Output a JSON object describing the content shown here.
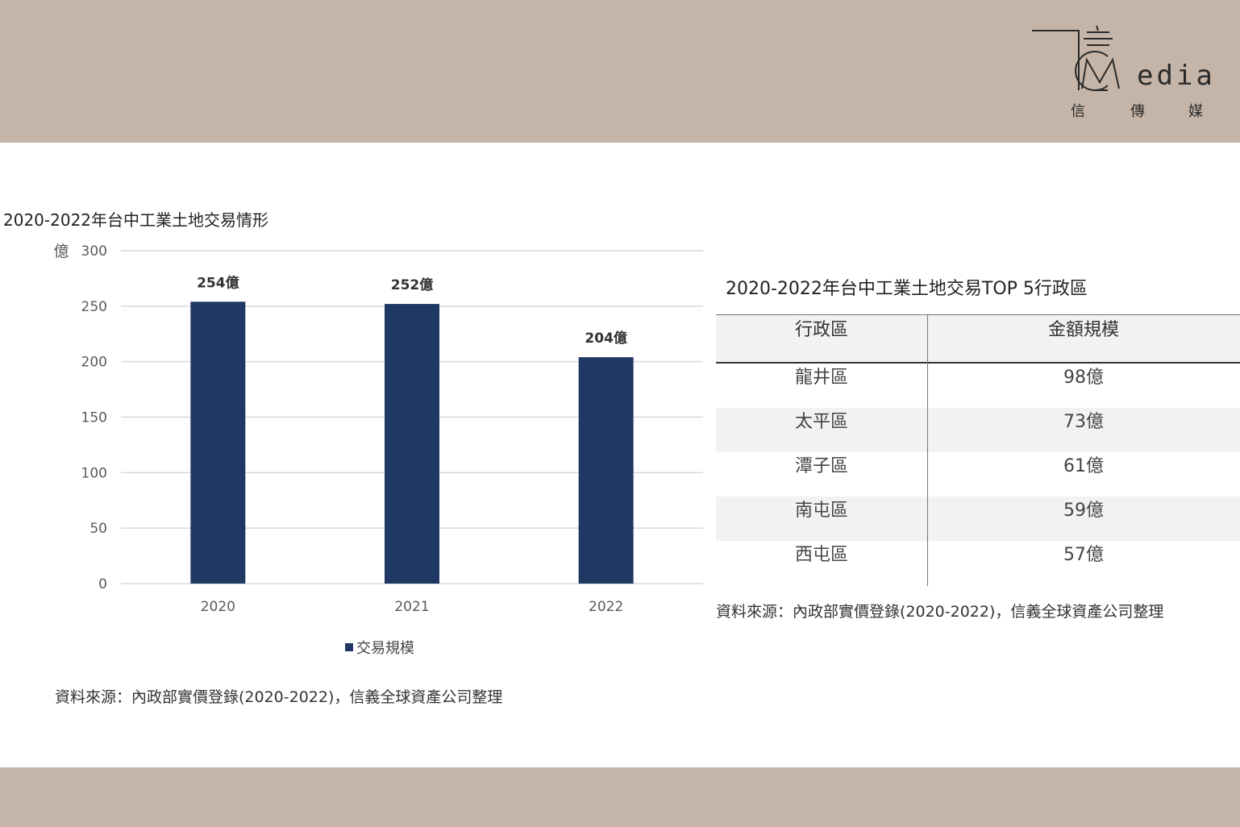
{
  "brand": {
    "logo_word": "edia",
    "logo_cn": [
      "信",
      "傳",
      "媒"
    ]
  },
  "colors": {
    "band": "#c5b5a8",
    "bar": "#1f3864",
    "grid": "#d9d9d9"
  },
  "chart_data": {
    "type": "bar",
    "title": "2020-2022年台中工業土地交易情形",
    "unit_label": "億",
    "categories": [
      "2020",
      "2021",
      "2022"
    ],
    "series": [
      {
        "name": "交易規模",
        "values": [
          254,
          252,
          204
        ]
      }
    ],
    "data_labels": [
      "254億",
      "252億",
      "204億"
    ],
    "yticks": [
      "0",
      "50",
      "100",
      "150",
      "200",
      "250",
      "300"
    ],
    "ylim": [
      0,
      300
    ],
    "grid": true,
    "legend": "bottom",
    "source": "資料來源：內政部實價登錄(2020-2022)，信義全球資產公司整理"
  },
  "table": {
    "title": "2020-2022年台中工業土地交易TOP 5行政區",
    "headers": [
      "行政區",
      "金額規模"
    ],
    "rows": [
      [
        "龍井區",
        "98億"
      ],
      [
        "太平區",
        "73億"
      ],
      [
        "潭子區",
        "61億"
      ],
      [
        "南屯區",
        "59億"
      ],
      [
        "西屯區",
        "57億"
      ]
    ],
    "source": "資料來源：內政部實價登錄(2020-2022)，信義全球資產公司整理"
  }
}
